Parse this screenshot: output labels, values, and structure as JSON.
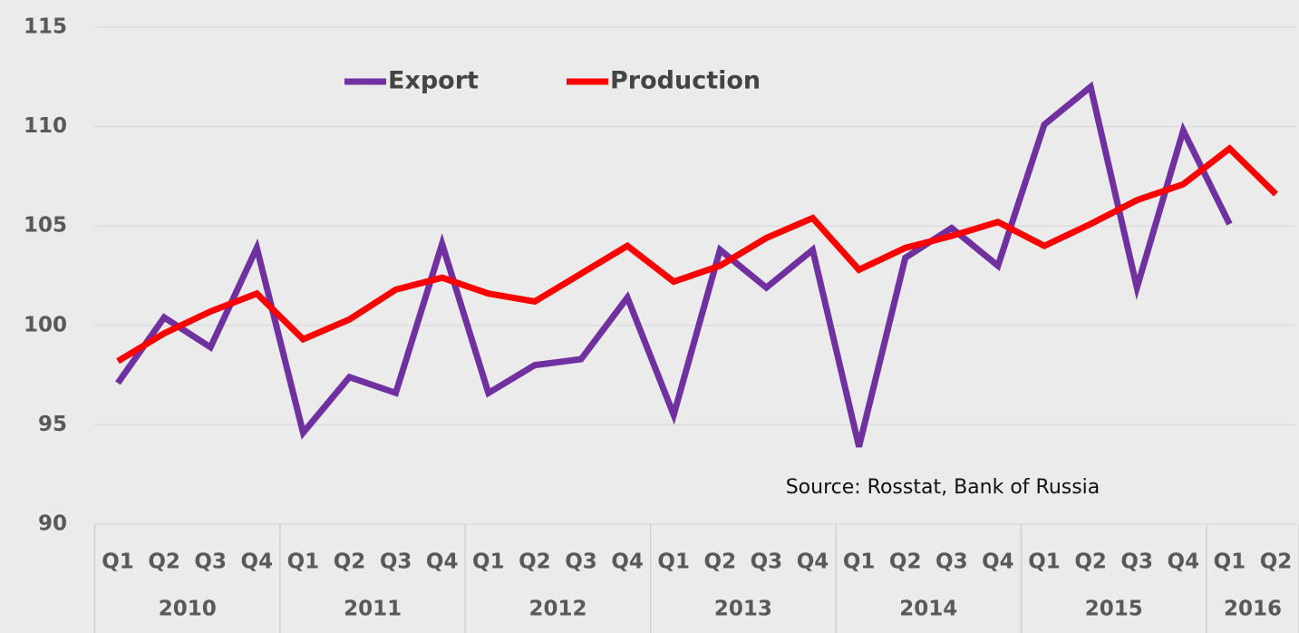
{
  "chart_data": {
    "type": "line",
    "annotation": "Source: Rosstat, Bank of Russia",
    "categories": [
      "Q1",
      "Q2",
      "Q3",
      "Q4",
      "Q1",
      "Q2",
      "Q3",
      "Q4",
      "Q1",
      "Q2",
      "Q3",
      "Q4",
      "Q1",
      "Q2",
      "Q3",
      "Q4",
      "Q1",
      "Q2",
      "Q3",
      "Q4",
      "Q1",
      "Q2",
      "Q3",
      "Q4",
      "Q1",
      "Q2"
    ],
    "groups": [
      {
        "label": "2010",
        "count": 4
      },
      {
        "label": "2011",
        "count": 4
      },
      {
        "label": "2012",
        "count": 4
      },
      {
        "label": "2013",
        "count": 4
      },
      {
        "label": "2014",
        "count": 4
      },
      {
        "label": "2015",
        "count": 4
      },
      {
        "label": "2016",
        "count": 2
      }
    ],
    "series": [
      {
        "name": "Export",
        "color": "#7030a0",
        "values": [
          97.1,
          100.4,
          98.9,
          103.9,
          94.6,
          97.4,
          96.6,
          104.1,
          96.6,
          98.0,
          98.3,
          101.4,
          95.5,
          103.8,
          101.9,
          103.8,
          93.9,
          103.4,
          104.9,
          103.0,
          110.1,
          112.0,
          101.9,
          109.8,
          105.1,
          null
        ]
      },
      {
        "name": "Production",
        "color": "#ff0000",
        "values": [
          98.2,
          99.6,
          100.7,
          101.6,
          99.3,
          100.3,
          101.8,
          102.4,
          101.6,
          101.2,
          102.6,
          104.0,
          102.2,
          103.0,
          104.4,
          105.4,
          102.8,
          103.9,
          104.5,
          105.2,
          104.0,
          105.1,
          106.3,
          107.1,
          108.9,
          106.6
        ]
      }
    ],
    "ylim": [
      90,
      115
    ],
    "yticks": [
      90,
      95,
      100,
      105,
      110,
      115
    ],
    "grid": true,
    "legend": "top"
  }
}
